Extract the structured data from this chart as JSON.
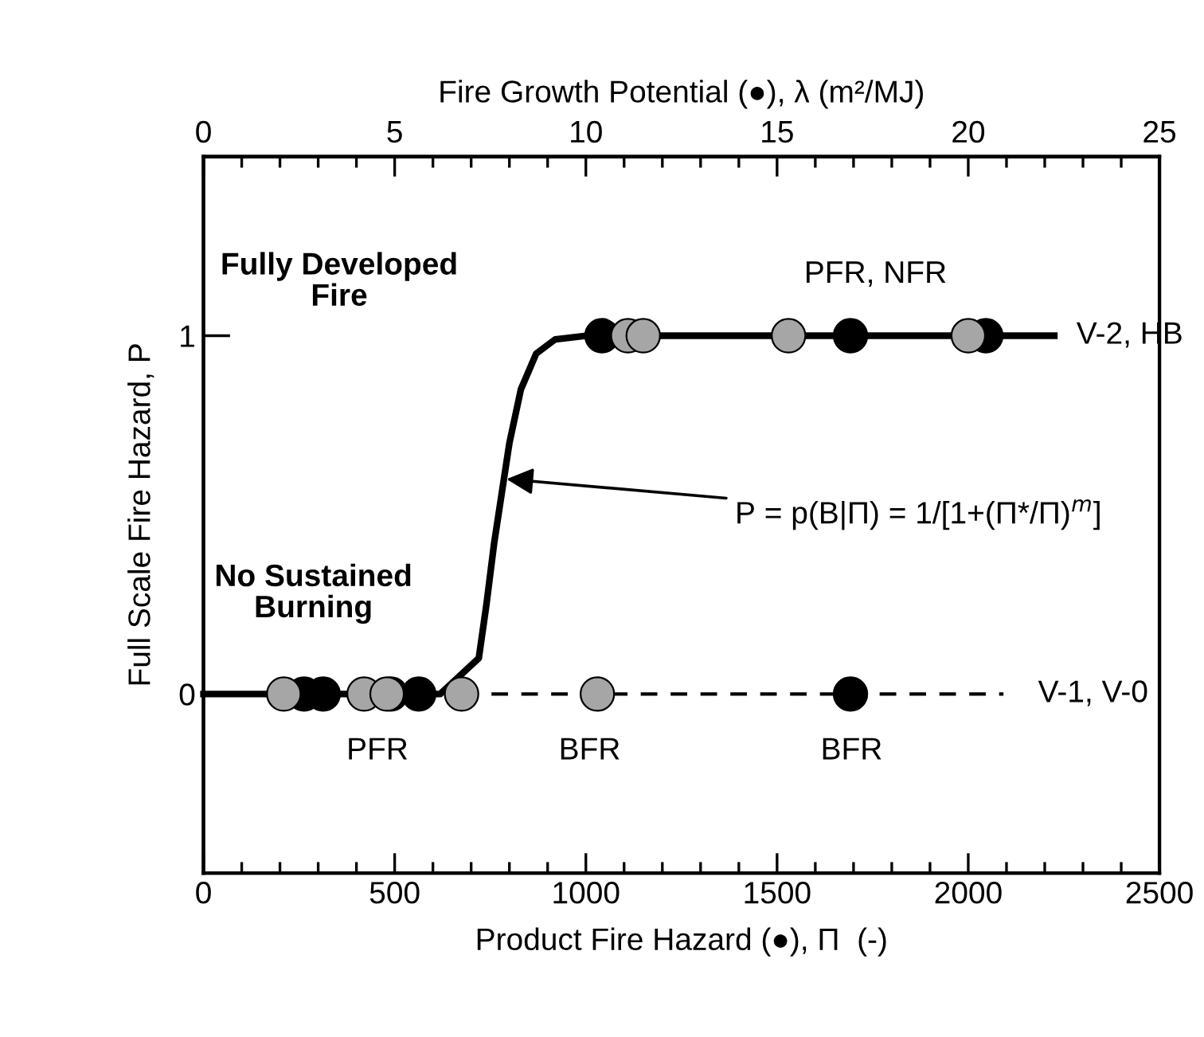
{
  "chart_data": {
    "type": "line",
    "xlabel": "Product Fire Hazard (●), Π  (-)",
    "x2label": "Fire Growth Potential (●), λ (m²/MJ)",
    "ylabel": "Full Scale Fire Hazard, P",
    "xlim": [
      0,
      2500
    ],
    "xticks": [
      0,
      500,
      1000,
      1500,
      2000,
      2500
    ],
    "x2lim": [
      0,
      25
    ],
    "x2ticks": [
      0,
      5,
      10,
      15,
      20,
      25
    ],
    "ylim": [
      -0.5,
      1.5
    ],
    "yticks": [
      0,
      1
    ],
    "grid": false,
    "legend": false,
    "series": [
      {
        "color": "#000000",
        "line_style": "solid",
        "x": [
          0,
          619,
          720,
          740,
          760,
          780,
          800,
          830,
          870,
          920,
          1000,
          2225
        ],
        "values": [
          0,
          0,
          0.1,
          0.25,
          0.42,
          0.56,
          0.7,
          0.85,
          0.95,
          0.99,
          1,
          1
        ]
      },
      {
        "color": "#000000",
        "line_style": "dashed",
        "x": [
          675,
          2092
        ],
        "values": [
          0,
          0
        ]
      },
      {
        "type": "scatter",
        "color": "#000000",
        "marker": "circle",
        "x": [
          263,
          313,
          490,
          563,
          1692,
          1042,
          1692,
          2046
        ],
        "values": [
          0,
          0,
          0,
          0,
          0,
          1,
          1,
          1
        ]
      },
      {
        "type": "scatter",
        "color": "#a6a6a6",
        "marker": "circle",
        "axis": "x2",
        "x": [
          2.1,
          4.2,
          4.8,
          6.75,
          10.3,
          11.1,
          11.5,
          15.3,
          20.0
        ],
        "values": [
          0,
          0,
          0,
          0,
          0,
          1,
          1,
          1,
          1
        ]
      }
    ],
    "annotations": [
      "Fully Developed\nFire",
      "No Sustained\nBurning",
      "PFR, NFR",
      {
        "text": "V-2, HB",
        "x": 2225,
        "y": 1
      },
      "V-1, V-0",
      "PFR",
      "BFR",
      "BFR",
      {
        "text": "P = p(B|Π) = 1/[1+(Π*/Π)$^{m}$]",
        "x": 792,
        "y": 0.6
      }
    ]
  }
}
